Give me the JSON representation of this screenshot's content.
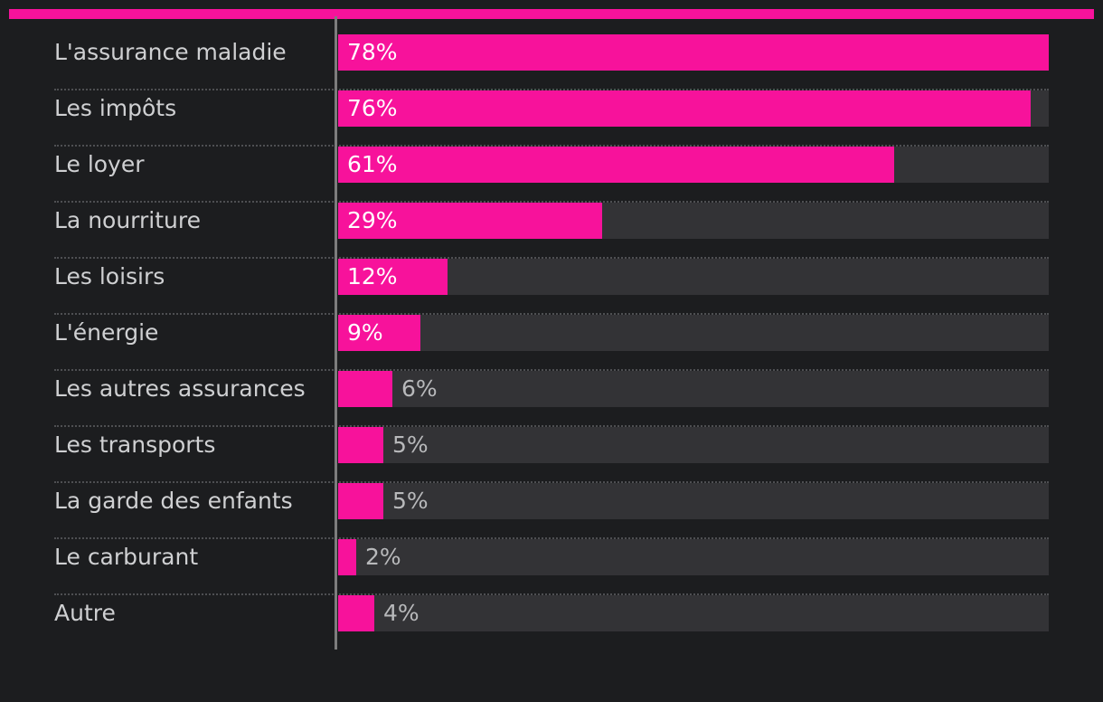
{
  "colors": {
    "background": "#1c1d1f",
    "accent": "#f7129b",
    "track": "#333336",
    "axis": "#7d7d7d",
    "label": "#cfd0d2",
    "value_inside": "#ffffff",
    "value_outside": "#b8b9bb"
  },
  "chart_data": {
    "type": "bar",
    "orientation": "horizontal",
    "categories": [
      "L'assurance maladie",
      "Les impôts",
      "Le loyer",
      "La nourriture",
      "Les loisirs",
      "L'énergie",
      "Les autres assurances",
      "Les transports",
      "La garde des enfants",
      "Le carburant",
      "Autre"
    ],
    "values": [
      78,
      76,
      61,
      29,
      12,
      9,
      6,
      5,
      5,
      2,
      4
    ],
    "value_labels": [
      "78%",
      "76%",
      "61%",
      "29%",
      "12%",
      "9%",
      "6%",
      "5%",
      "5%",
      "2%",
      "4%"
    ],
    "xlim": [
      0,
      78
    ],
    "grid": false,
    "legend": "none"
  }
}
